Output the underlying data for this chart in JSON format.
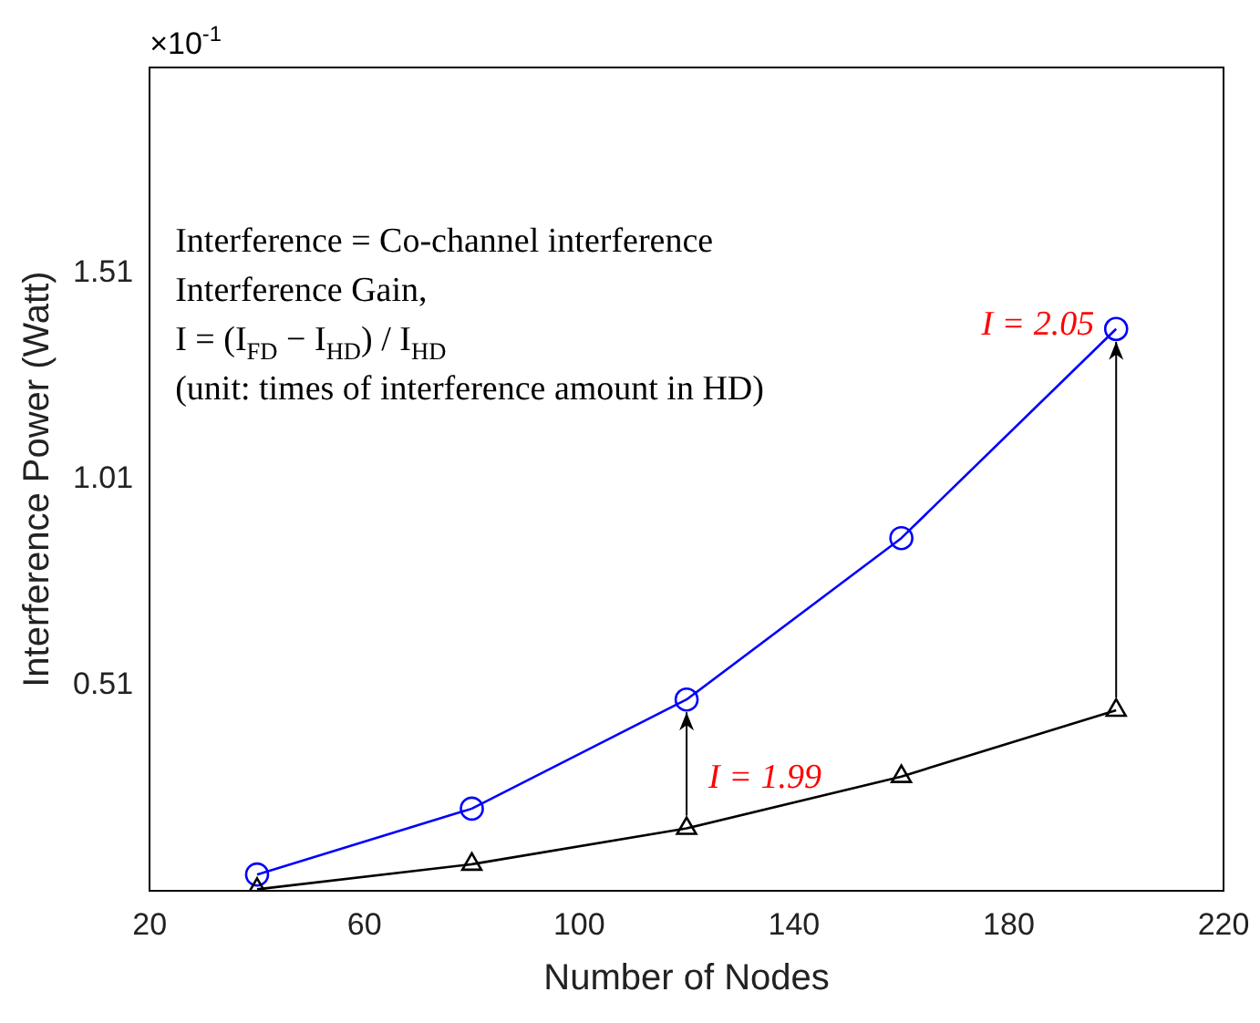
{
  "chart_data": {
    "type": "line",
    "xlabel": "Number of Nodes",
    "ylabel": "Interference Power (Watt)",
    "x": [
      40,
      80,
      120,
      160,
      200
    ],
    "series": [
      {
        "color": "#0000ff",
        "marker": "circle",
        "values": [
          0.05,
          0.21,
          0.475,
          0.867,
          1.375
        ]
      },
      {
        "color": "#000000",
        "marker": "triangle",
        "values": [
          0.014,
          0.075,
          0.162,
          0.288,
          0.449
        ]
      }
    ],
    "xlim": [
      20,
      220
    ],
    "xticks": [
      20,
      60,
      100,
      140,
      180,
      220
    ],
    "ylim": [
      0.01,
      2.01
    ],
    "yticks": [
      0.51,
      1.01,
      1.51
    ],
    "grid": false,
    "legend": false,
    "line_style": "solid",
    "annotations": [
      "×10$^{-1}$",
      "Interference = Co-channel interference",
      "Interference Gain,",
      "I = (I$_{FD}$ − I$_{HD}$) / I$_{HD}$",
      "(unit: times of interference amount in HD)",
      {
        "text": "I = 1.99",
        "x": 120,
        "y": 0.475
      },
      {
        "text": "I = 2.05",
        "x": 200,
        "y": 1.375
      }
    ]
  }
}
